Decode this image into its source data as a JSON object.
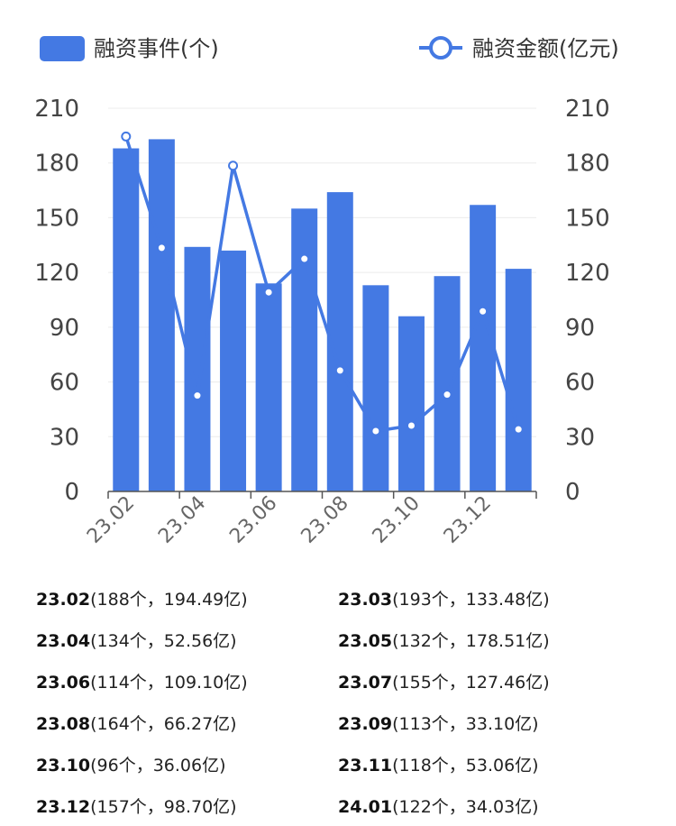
{
  "chart_data": {
    "type": "bar+line",
    "categories": [
      "23.02",
      "23.03",
      "23.04",
      "23.05",
      "23.06",
      "23.07",
      "23.08",
      "23.09",
      "23.10",
      "23.11",
      "23.12",
      "24.01"
    ],
    "x_tick_labels": [
      "23.02",
      "23.04",
      "23.06",
      "23.08",
      "23.10",
      "23.12"
    ],
    "series": [
      {
        "name": "融资事件(个)",
        "type": "bar",
        "axis": "left",
        "color": "#4479E3",
        "values": [
          188,
          193,
          134,
          132,
          114,
          155,
          164,
          113,
          96,
          118,
          157,
          122
        ]
      },
      {
        "name": "融资金额(亿元)",
        "type": "line",
        "axis": "right",
        "color": "#4479E3",
        "values": [
          194.49,
          133.48,
          52.56,
          178.51,
          109.1,
          127.46,
          66.27,
          33.1,
          36.06,
          53.06,
          98.7,
          34.03
        ]
      }
    ],
    "y_left": {
      "min": 0,
      "max": 210,
      "ticks": [
        0,
        30,
        60,
        90,
        120,
        150,
        180,
        210
      ]
    },
    "y_right": {
      "min": 0,
      "max": 210,
      "ticks": [
        0,
        30,
        60,
        90,
        120,
        150,
        180,
        210
      ]
    },
    "grid": true,
    "legend": "top"
  },
  "summary": [
    {
      "month": "23.02",
      "detail": "(188个，194.49亿)"
    },
    {
      "month": "23.03",
      "detail": "(193个，133.48亿)"
    },
    {
      "month": "23.04",
      "detail": "(134个，52.56亿)"
    },
    {
      "month": "23.05",
      "detail": "(132个，178.51亿)"
    },
    {
      "month": "23.06",
      "detail": "(114个，109.10亿)"
    },
    {
      "month": "23.07",
      "detail": "(155个，127.46亿)"
    },
    {
      "month": "23.08",
      "detail": "(164个，66.27亿)"
    },
    {
      "month": "23.09",
      "detail": "(113个，33.10亿)"
    },
    {
      "month": "23.10",
      "detail": "(96个，36.06亿)"
    },
    {
      "month": "23.11",
      "detail": "(118个，53.06亿)"
    },
    {
      "month": "23.12",
      "detail": "(157个，98.70亿)"
    },
    {
      "month": "24.01",
      "detail": "(122个，34.03亿)"
    }
  ]
}
